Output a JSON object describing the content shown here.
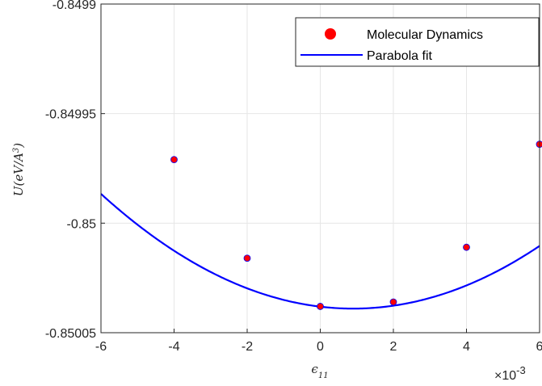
{
  "chart_data": {
    "type": "scatter",
    "xlabel": "ε11",
    "ylabel": "U(eV/A³)",
    "x_exponent_label": "×10-3",
    "xlim": [
      -6,
      6
    ],
    "ylim": [
      -0.85005,
      -0.8499
    ],
    "x_ticks": [
      -6,
      -4,
      -2,
      0,
      2,
      4,
      6
    ],
    "x_tick_labels": [
      "-6",
      "-4",
      "-2",
      "0",
      "2",
      "4",
      "6"
    ],
    "y_ticks": [
      -0.85005,
      -0.85,
      -0.84995,
      -0.8499
    ],
    "y_tick_labels": [
      "-0.85005",
      "-0.85",
      "-0.84995",
      "-0.8499"
    ],
    "grid": true,
    "legend_position": "top-right",
    "series": [
      {
        "name": "Molecular Dynamics",
        "kind": "markers",
        "color": "#ff0000",
        "x": [
          -4,
          -2,
          0,
          2,
          4,
          6
        ],
        "y": [
          -0.849971,
          -0.850016,
          -0.850038,
          -0.850036,
          -0.850011,
          -0.849964
        ]
      },
      {
        "name": "Parabola fit",
        "kind": "line",
        "color": "#0000ff",
        "quadratic": {
          "a": 1.1,
          "vertex_x": 0.9,
          "vertex_y": -0.850039
        },
        "x_range": [
          -6,
          6
        ]
      }
    ]
  }
}
